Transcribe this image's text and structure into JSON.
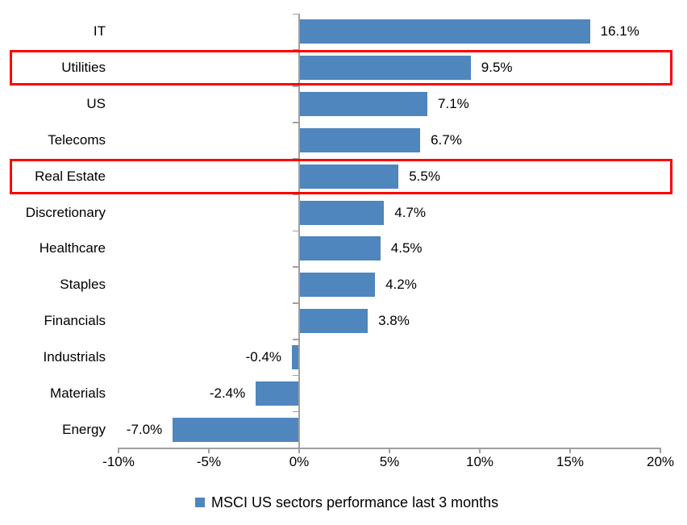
{
  "chart_data": {
    "type": "bar",
    "orientation": "horizontal",
    "title": "",
    "categories": [
      "IT",
      "Utilities",
      "US",
      "Telecoms",
      "Real Estate",
      "Discretionary",
      "Healthcare",
      "Staples",
      "Financials",
      "Industrials",
      "Materials",
      "Energy"
    ],
    "values": [
      16.1,
      9.5,
      7.1,
      6.7,
      5.5,
      4.7,
      4.5,
      4.2,
      3.8,
      -0.4,
      -2.4,
      -7.0
    ],
    "data_labels": [
      "16.1%",
      "9.5%",
      "7.1%",
      "6.7%",
      "5.5%",
      "4.7%",
      "4.5%",
      "4.2%",
      "3.8%",
      "-0.4%",
      "-2.4%",
      "-7.0%"
    ],
    "highlighted_categories": [
      "Utilities",
      "Real Estate"
    ],
    "x_ticks": [
      {
        "value": -10,
        "label": "-10%"
      },
      {
        "value": -5,
        "label": "-5%"
      },
      {
        "value": 0,
        "label": "0%"
      },
      {
        "value": 5,
        "label": "5%"
      },
      {
        "value": 10,
        "label": "10%"
      },
      {
        "value": 15,
        "label": "15%"
      },
      {
        "value": 20,
        "label": "20%"
      }
    ],
    "xlim": [
      -10,
      20
    ],
    "grid": false,
    "legend": {
      "label": "MSCI US sectors performance last 3 months",
      "position": "bottom"
    },
    "colors": {
      "bar": "#4f86bd",
      "highlight_box": "#ff0000",
      "axis": "#a0a0a0",
      "text": "#000000"
    }
  }
}
